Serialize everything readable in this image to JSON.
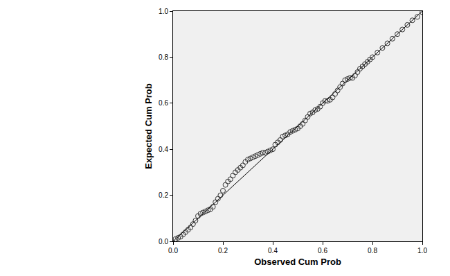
{
  "chart_data": {
    "type": "scatter",
    "x_label": "Observed Cum Prob",
    "y_label": "Expected Cum Prob",
    "xlim": [
      0,
      1
    ],
    "ylim": [
      0,
      1
    ],
    "xticks": [
      {
        "value": 0,
        "label": "0.0"
      },
      {
        "value": 0.2,
        "label": "0.2"
      },
      {
        "value": 0.4,
        "label": "0.4"
      },
      {
        "value": 0.6,
        "label": "0.6"
      },
      {
        "value": 0.8,
        "label": "0.8"
      },
      {
        "value": 1,
        "label": "1.0"
      }
    ],
    "yticks": [
      {
        "value": 0,
        "label": "0.0"
      },
      {
        "value": 0.2,
        "label": "0.2"
      },
      {
        "value": 0.4,
        "label": "0.4"
      },
      {
        "value": 0.6,
        "label": "0.6"
      },
      {
        "value": 0.8,
        "label": "0.8"
      },
      {
        "value": 1,
        "label": "1.0"
      }
    ],
    "grid": false,
    "series": [
      {
        "type": "scatter",
        "marker": "circle-open",
        "color": "#333333",
        "x": [
          0.01,
          0.02,
          0.03,
          0.04,
          0.05,
          0.06,
          0.07,
          0.08,
          0.09,
          0.1,
          0.11,
          0.12,
          0.13,
          0.14,
          0.15,
          0.16,
          0.17,
          0.18,
          0.19,
          0.2,
          0.21,
          0.22,
          0.23,
          0.24,
          0.25,
          0.26,
          0.27,
          0.28,
          0.29,
          0.3,
          0.31,
          0.32,
          0.33,
          0.34,
          0.35,
          0.36,
          0.37,
          0.38,
          0.39,
          0.4,
          0.41,
          0.42,
          0.43,
          0.44,
          0.45,
          0.46,
          0.47,
          0.48,
          0.49,
          0.5,
          0.51,
          0.52,
          0.53,
          0.54,
          0.55,
          0.56,
          0.57,
          0.58,
          0.59,
          0.6,
          0.61,
          0.62,
          0.63,
          0.64,
          0.65,
          0.66,
          0.67,
          0.68,
          0.69,
          0.7,
          0.71,
          0.72,
          0.73,
          0.74,
          0.75,
          0.76,
          0.77,
          0.78,
          0.79,
          0.8,
          0.82,
          0.84,
          0.86,
          0.88,
          0.9,
          0.92,
          0.94,
          0.96,
          0.98,
          1.0
        ],
        "values": [
          0.01,
          0.015,
          0.02,
          0.03,
          0.04,
          0.05,
          0.06,
          0.075,
          0.09,
          0.11,
          0.12,
          0.125,
          0.13,
          0.135,
          0.14,
          0.15,
          0.17,
          0.185,
          0.2,
          0.22,
          0.245,
          0.26,
          0.27,
          0.285,
          0.3,
          0.31,
          0.32,
          0.33,
          0.345,
          0.355,
          0.36,
          0.365,
          0.37,
          0.375,
          0.38,
          0.385,
          0.385,
          0.39,
          0.395,
          0.4,
          0.42,
          0.43,
          0.44,
          0.455,
          0.46,
          0.465,
          0.475,
          0.48,
          0.485,
          0.49,
          0.5,
          0.51,
          0.525,
          0.54,
          0.555,
          0.56,
          0.57,
          0.575,
          0.585,
          0.6,
          0.61,
          0.61,
          0.615,
          0.625,
          0.64,
          0.655,
          0.67,
          0.685,
          0.7,
          0.705,
          0.71,
          0.71,
          0.72,
          0.735,
          0.75,
          0.76,
          0.77,
          0.78,
          0.79,
          0.8,
          0.82,
          0.84,
          0.86,
          0.88,
          0.9,
          0.92,
          0.94,
          0.96,
          0.975,
          0.995
        ]
      },
      {
        "type": "line",
        "line_style": "solid",
        "color": "#000000",
        "x": [
          0,
          1
        ],
        "values": [
          0,
          1
        ]
      }
    ]
  }
}
